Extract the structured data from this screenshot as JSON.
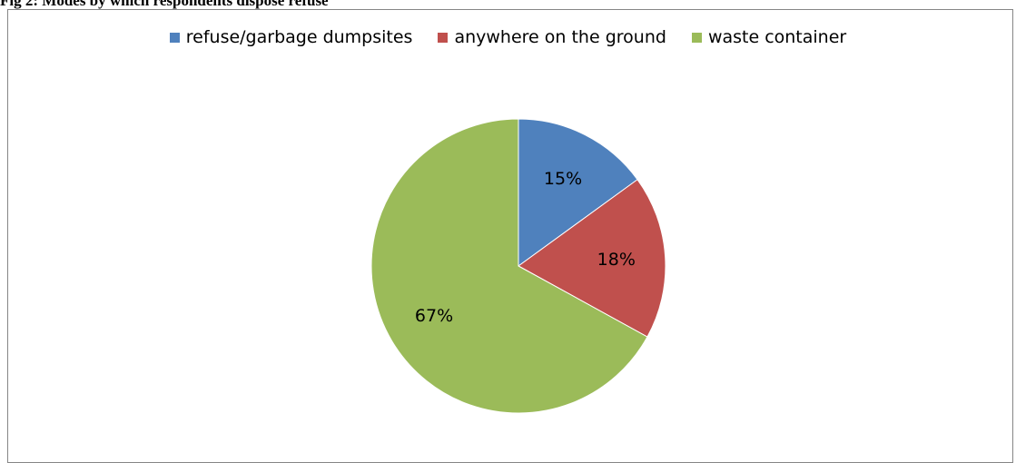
{
  "title": "Fig 2: Modes by which respondents dispose refuse",
  "chart_data": {
    "type": "pie",
    "title": "",
    "legend_position": "top",
    "series": [
      {
        "label": "refuse/garbage dumpsites",
        "value": 15,
        "value_label": "15%",
        "color": "#4F81BD"
      },
      {
        "label": "anywhere on the ground",
        "value": 18,
        "value_label": "18%",
        "color": "#C0504D"
      },
      {
        "label": "waste container",
        "value": 67,
        "value_label": "67%",
        "color": "#9BBB59"
      }
    ]
  }
}
